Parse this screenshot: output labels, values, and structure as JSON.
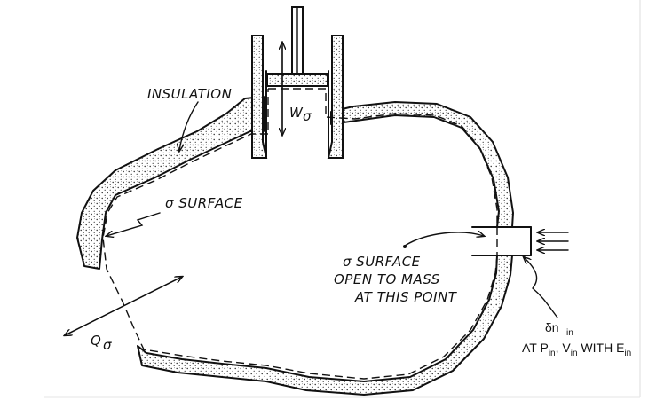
{
  "labels": {
    "insulation": "INSULATION",
    "work_symbol": "W",
    "work_sub": "σ",
    "sigma_surface": "σ SURFACE",
    "open_line1": "σ SURFACE",
    "open_line2": "OPEN  TO MASS",
    "open_line3": "AT THIS POINT",
    "heat_symbol": "Q",
    "heat_sub": "σ",
    "dn_symbol": "δn",
    "dn_sub": "in",
    "inflow_at": "AT P",
    "inflow_p_sub": "in",
    "inflow_comma": ", V",
    "inflow_v_sub": "in",
    "inflow_with": " WITH E",
    "inflow_e_sub": "in"
  }
}
